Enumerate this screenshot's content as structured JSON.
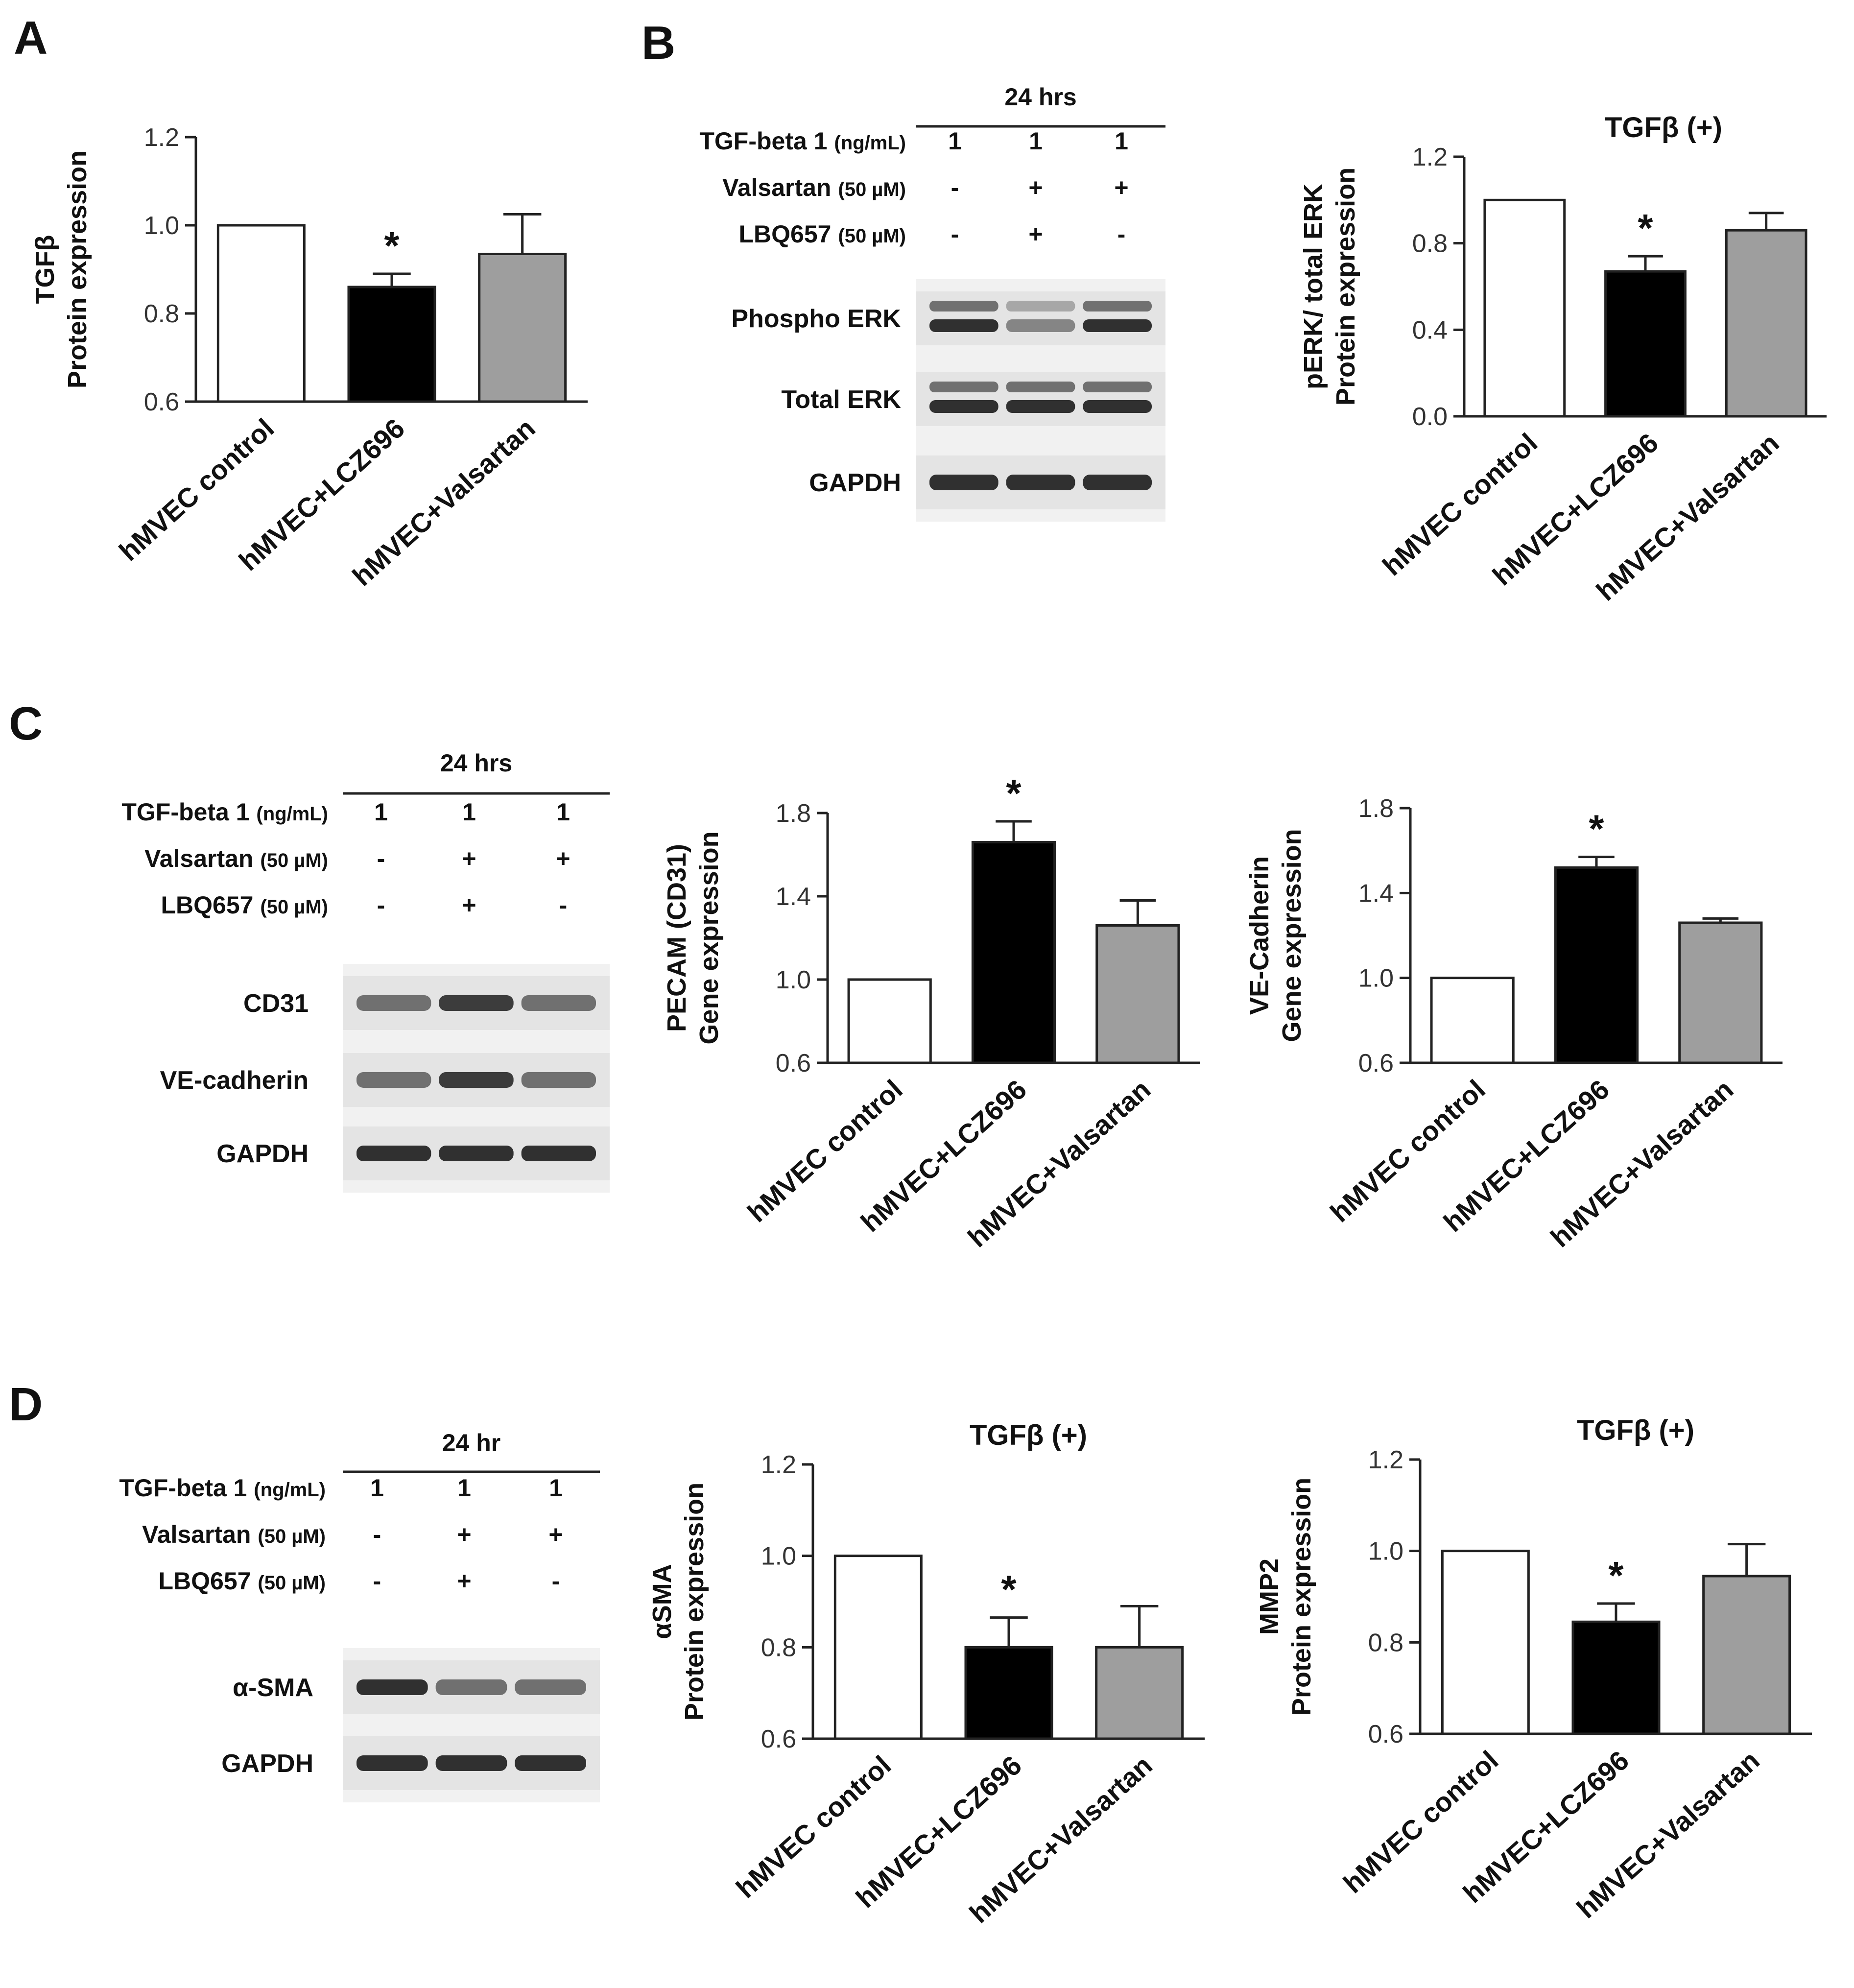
{
  "panels": {
    "A": "A",
    "B": "B",
    "C": "C",
    "D": "D"
  },
  "blots": {
    "B": {
      "time": "24 hrs",
      "rows": [
        {
          "label": "TGF-beta 1",
          "unit": "(ng/mL)",
          "values": [
            "1",
            "1",
            "1"
          ]
        },
        {
          "label": "Valsartan",
          "unit": "(50 µM)",
          "values": [
            "-",
            "+",
            "+"
          ]
        },
        {
          "label": "LBQ657",
          "unit": "(50 µM)",
          "values": [
            "-",
            "+",
            "-"
          ]
        }
      ],
      "bands": [
        "Phospho ERK",
        "Total ERK",
        "GAPDH"
      ]
    },
    "C": {
      "time": "24 hrs",
      "rows": [
        {
          "label": "TGF-beta 1",
          "unit": "(ng/mL)",
          "values": [
            "1",
            "1",
            "1"
          ]
        },
        {
          "label": "Valsartan",
          "unit": "(50 µM)",
          "values": [
            "-",
            "+",
            "+"
          ]
        },
        {
          "label": "LBQ657",
          "unit": "(50 µM)",
          "values": [
            "-",
            "+",
            "-"
          ]
        }
      ],
      "bands": [
        "CD31",
        "VE-cadherin",
        "GAPDH"
      ]
    },
    "D": {
      "time": "24 hr",
      "rows": [
        {
          "label": "TGF-beta 1",
          "unit": "(ng/mL)",
          "values": [
            "1",
            "1",
            "1"
          ]
        },
        {
          "label": "Valsartan",
          "unit": "(50 µM)",
          "values": [
            "-",
            "+",
            "+"
          ]
        },
        {
          "label": "LBQ657",
          "unit": "(50 µM)",
          "values": [
            "-",
            "+",
            "-"
          ]
        }
      ],
      "bands": [
        "α-SMA",
        "GAPDH"
      ]
    }
  },
  "colors": {
    "control": "#ffffff",
    "lcz696": "#000000",
    "valsartan": "#9e9e9e",
    "axis": "#222222"
  },
  "chart_data": [
    {
      "id": "A",
      "type": "bar",
      "title": "",
      "ylabel": [
        "TGFβ",
        "Protein expression"
      ],
      "categories": [
        "hMVEC control",
        "hMVEC+LCZ696",
        "hMVEC+Valsartan"
      ],
      "values": [
        1.0,
        0.86,
        0.935
      ],
      "errors": [
        0,
        0.03,
        0.09
      ],
      "significance": [
        "",
        "*",
        ""
      ],
      "ylim": [
        0.6,
        1.2
      ],
      "yticks": [
        "0.6",
        "0.8",
        "1.0",
        "1.2"
      ]
    },
    {
      "id": "B",
      "type": "bar",
      "title": "TGFβ (+)",
      "ylabel": [
        "pERK/ total ERK",
        "Protein expression"
      ],
      "categories": [
        "hMVEC control",
        "hMVEC+LCZ696",
        "hMVEC+Valsartan"
      ],
      "values": [
        1.0,
        0.67,
        0.86
      ],
      "errors": [
        0,
        0.07,
        0.08
      ],
      "significance": [
        "",
        "*",
        ""
      ],
      "ylim": [
        0.0,
        1.2
      ],
      "yticks": [
        "0.0",
        "0.4",
        "0.8",
        "1.2"
      ]
    },
    {
      "id": "C1",
      "type": "bar",
      "title": "",
      "ylabel": [
        "PECAM (CD31)",
        "Gene expression"
      ],
      "categories": [
        "hMVEC control",
        "hMVEC+LCZ696",
        "hMVEC+Valsartan"
      ],
      "values": [
        1.0,
        1.66,
        1.26
      ],
      "errors": [
        0,
        0.1,
        0.12
      ],
      "significance": [
        "",
        "*",
        ""
      ],
      "ylim": [
        0.6,
        1.8
      ],
      "yticks": [
        "0.6",
        "1.0",
        "1.4",
        "1.8"
      ]
    },
    {
      "id": "C2",
      "type": "bar",
      "title": "",
      "ylabel": [
        "VE-Cadherin",
        "Gene expression"
      ],
      "categories": [
        "hMVEC control",
        "hMVEC+LCZ696",
        "hMVEC+Valsartan"
      ],
      "values": [
        1.0,
        1.52,
        1.26
      ],
      "errors": [
        0,
        0.05,
        0.02
      ],
      "significance": [
        "",
        "*",
        ""
      ],
      "ylim": [
        0.6,
        1.8
      ],
      "yticks": [
        "0.6",
        "1.0",
        "1.4",
        "1.8"
      ]
    },
    {
      "id": "D1",
      "type": "bar",
      "title": "TGFβ (+)",
      "ylabel": [
        "αSMA",
        "Protein expression"
      ],
      "categories": [
        "hMVEC control",
        "hMVEC+LCZ696",
        "hMVEC+Valsartan"
      ],
      "values": [
        1.0,
        0.8,
        0.8
      ],
      "errors": [
        0,
        0.065,
        0.09
      ],
      "significance": [
        "",
        "*",
        ""
      ],
      "ylim": [
        0.6,
        1.2
      ],
      "yticks": [
        "0.6",
        "0.8",
        "1.0",
        "1.2"
      ]
    },
    {
      "id": "D2",
      "type": "bar",
      "title": "TGFβ (+)",
      "ylabel": [
        "MMP2",
        "Protein expression"
      ],
      "categories": [
        "hMVEC control",
        "hMVEC+LCZ696",
        "hMVEC+Valsartan"
      ],
      "values": [
        1.0,
        0.845,
        0.945
      ],
      "errors": [
        0,
        0.04,
        0.07
      ],
      "significance": [
        "",
        "*",
        ""
      ],
      "ylim": [
        0.6,
        1.2
      ],
      "yticks": [
        "0.6",
        "0.8",
        "1.0",
        "1.2"
      ]
    }
  ]
}
